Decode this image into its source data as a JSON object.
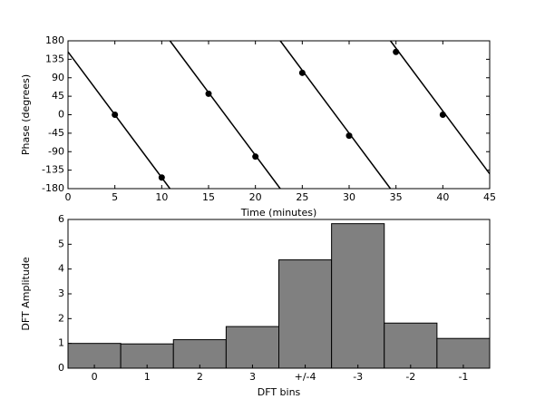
{
  "chart_data": [
    {
      "type": "line",
      "xlabel": "Time (minutes)",
      "ylabel": "Phase (degrees)",
      "xlim": [
        0,
        45
      ],
      "xticks": [
        0,
        5,
        10,
        15,
        20,
        25,
        30,
        35,
        40,
        45
      ],
      "ylim": [
        -180,
        180
      ],
      "yticks": [
        180,
        135,
        90,
        45,
        0,
        -45,
        -90,
        -135,
        -180
      ],
      "series": [
        {
          "style": "line",
          "color": "#000000",
          "x": [
            0,
            10.88,
            null,
            10.88,
            22.65,
            null,
            22.65,
            34.41,
            null,
            34.41,
            45
          ],
          "values": [
            153,
            -180,
            null,
            180,
            -180,
            null,
            180,
            -180,
            null,
            180,
            -144
          ]
        },
        {
          "style": "markers",
          "color": "#000000",
          "x": [
            5,
            10,
            15,
            20,
            25,
            30,
            35,
            40
          ],
          "values": [
            0,
            -153,
            51,
            -102,
            102,
            -51,
            153,
            0
          ]
        }
      ]
    },
    {
      "type": "bar",
      "xlabel": "DFT bins",
      "ylabel": "DFT Amplitude",
      "categories": [
        "0",
        "1",
        "2",
        "3",
        "+/-4",
        "-3",
        "-2",
        "-1"
      ],
      "values": [
        1.0,
        0.98,
        1.15,
        1.68,
        4.37,
        5.83,
        1.82,
        1.2
      ],
      "color": "#808080",
      "ylim": [
        0,
        6
      ],
      "yticks": [
        0,
        1,
        2,
        3,
        4,
        5,
        6
      ]
    }
  ]
}
